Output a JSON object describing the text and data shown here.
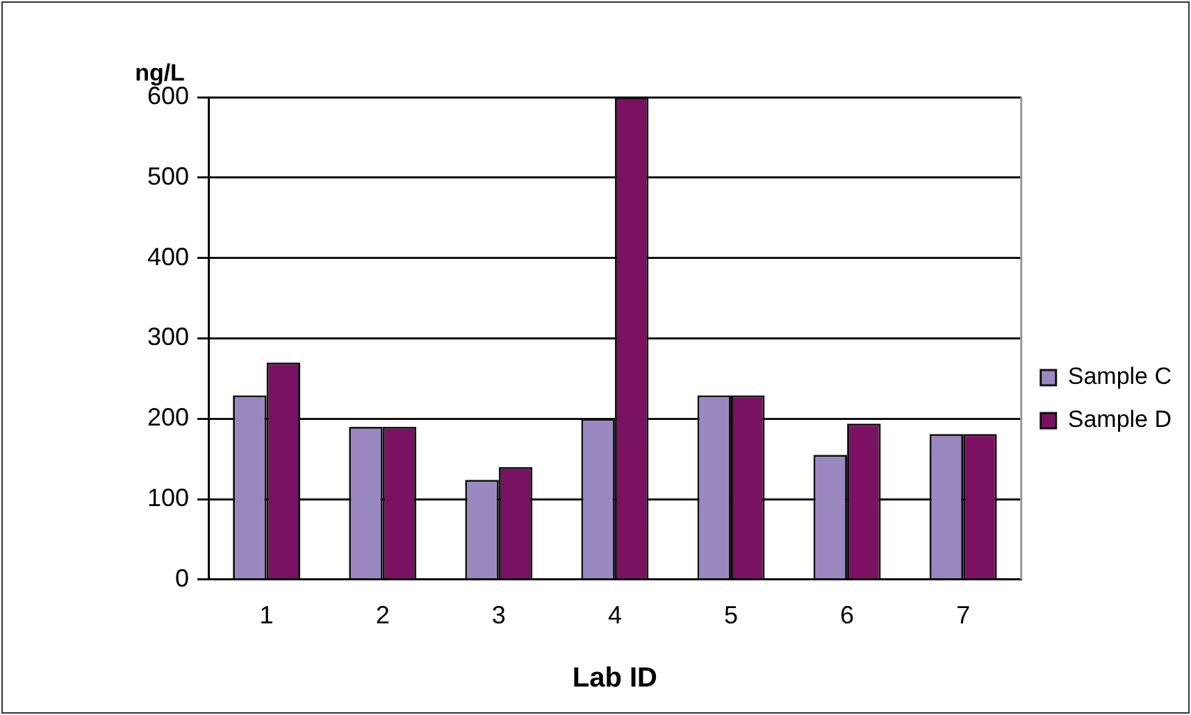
{
  "chart_data": {
    "type": "bar",
    "xlabel": "Lab ID",
    "ylabel": "ng/L",
    "categories": [
      "1",
      "2",
      "3",
      "4",
      "5",
      "6",
      "7"
    ],
    "series": [
      {
        "name": "Sample C",
        "color": "#9a88c0",
        "values": [
          229,
          190,
          124,
          200,
          229,
          155,
          181
        ]
      },
      {
        "name": "Sample D",
        "color": "#7b1163",
        "values": [
          270,
          190,
          140,
          600,
          229,
          194,
          181
        ]
      }
    ],
    "ylim": [
      0,
      600
    ],
    "yticks": [
      0,
      100,
      200,
      300,
      400,
      500,
      600
    ],
    "grid": "y",
    "legend": "right"
  }
}
